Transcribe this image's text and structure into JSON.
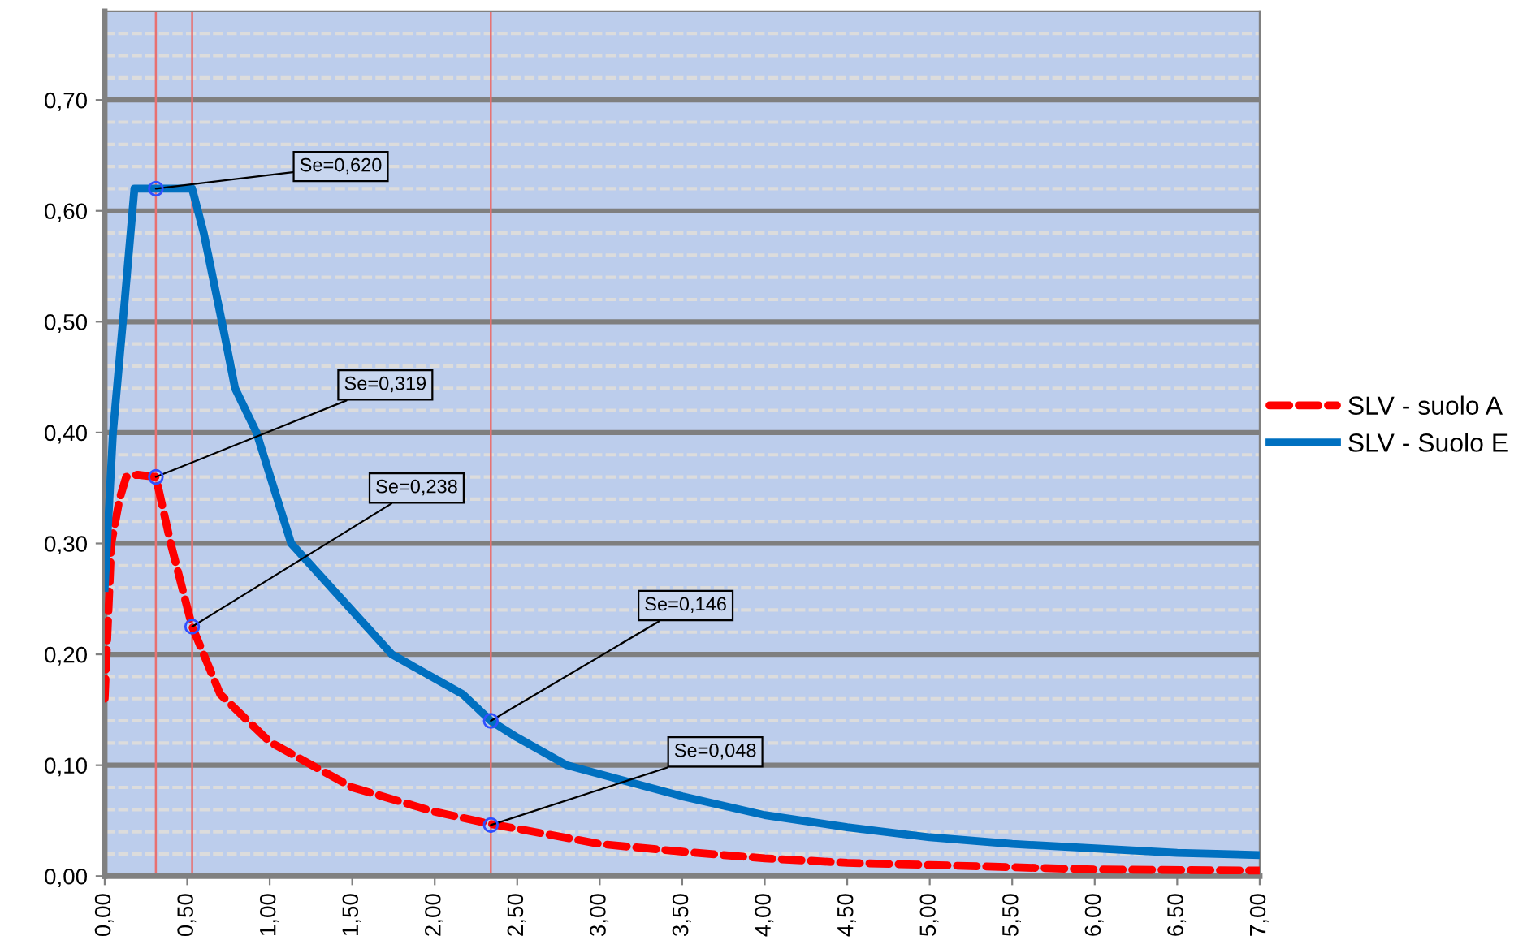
{
  "chart_data": {
    "type": "line",
    "xlim": [
      0,
      7
    ],
    "ylim": [
      0,
      0.78
    ],
    "xticks": [
      {
        "value": 0,
        "label": "0,00"
      },
      {
        "value": 0.5,
        "label": "0,50"
      },
      {
        "value": 1,
        "label": "1,00"
      },
      {
        "value": 1.5,
        "label": "1,50"
      },
      {
        "value": 2,
        "label": "2,00"
      },
      {
        "value": 2.5,
        "label": "2,50"
      },
      {
        "value": 3,
        "label": "3,00"
      },
      {
        "value": 3.5,
        "label": "3,50"
      },
      {
        "value": 4,
        "label": "4,00"
      },
      {
        "value": 4.5,
        "label": "4,50"
      },
      {
        "value": 5,
        "label": "5,00"
      },
      {
        "value": 5.5,
        "label": "5,50"
      },
      {
        "value": 6,
        "label": "6,00"
      },
      {
        "value": 6.5,
        "label": "6,50"
      },
      {
        "value": 7,
        "label": "7,00"
      }
    ],
    "yticks": [
      {
        "value": 0,
        "label": "0,00"
      },
      {
        "value": 0.1,
        "label": "0,10"
      },
      {
        "value": 0.2,
        "label": "0,20"
      },
      {
        "value": 0.3,
        "label": "0,30"
      },
      {
        "value": 0.4,
        "label": "0,40"
      },
      {
        "value": 0.5,
        "label": "0,50"
      },
      {
        "value": 0.6,
        "label": "0,60"
      },
      {
        "value": 0.7,
        "label": "0,70"
      }
    ],
    "grid": "y",
    "legend": "right",
    "marker": "none",
    "series": [
      {
        "name": "SLV - suolo A",
        "color": "#ff0000",
        "line_style": "dashed",
        "x": [
          0,
          0.04,
          0.09,
          0.13,
          0.2,
          0.31,
          0.4,
          0.53,
          0.7,
          1.0,
          1.5,
          2.0,
          2.34,
          3.0,
          3.5,
          4.0,
          4.5,
          5.0,
          5.5,
          6.0,
          7.0
        ],
        "values": [
          0.16,
          0.3,
          0.34,
          0.36,
          0.362,
          0.36,
          0.3,
          0.225,
          0.164,
          0.121,
          0.08,
          0.058,
          0.047,
          0.029,
          0.022,
          0.016,
          0.012,
          0.01,
          0.008,
          0.006,
          0.005
        ]
      },
      {
        "name": "SLV - Suolo E",
        "color": "#0070c0",
        "line_style": "solid",
        "x": [
          0,
          0.05,
          0.11,
          0.18,
          0.31,
          0.53,
          0.6,
          0.71,
          0.79,
          0.92,
          1.13,
          1.74,
          2.17,
          2.34,
          2.5,
          2.8,
          3.5,
          4.0,
          4.5,
          5.0,
          5.5,
          6.0,
          6.5,
          7.0
        ],
        "values": [
          0.26,
          0.4,
          0.5,
          0.62,
          0.62,
          0.62,
          0.58,
          0.5,
          0.44,
          0.4,
          0.3,
          0.2,
          0.164,
          0.14,
          0.125,
          0.1,
          0.072,
          0.055,
          0.044,
          0.035,
          0.029,
          0.025,
          0.021,
          0.019
        ]
      }
    ],
    "ref_lines": [
      {
        "axis": "x",
        "value": 0.31,
        "color": "#e87070"
      },
      {
        "axis": "x",
        "value": 0.53,
        "color": "#e87070"
      },
      {
        "axis": "x",
        "value": 2.34,
        "color": "#e87070"
      }
    ],
    "annotations": [
      {
        "text": "Se=0,620",
        "x": 0.31,
        "y": 0.62
      },
      {
        "text": "Se=0,319",
        "x": 0.31,
        "y": 0.36
      },
      {
        "text": "Se=0,238",
        "x": 0.53,
        "y": 0.225
      },
      {
        "text": "Se=0,146",
        "x": 2.34,
        "y": 0.14
      },
      {
        "text": "Se=0,048",
        "x": 2.34,
        "y": 0.046
      }
    ]
  }
}
